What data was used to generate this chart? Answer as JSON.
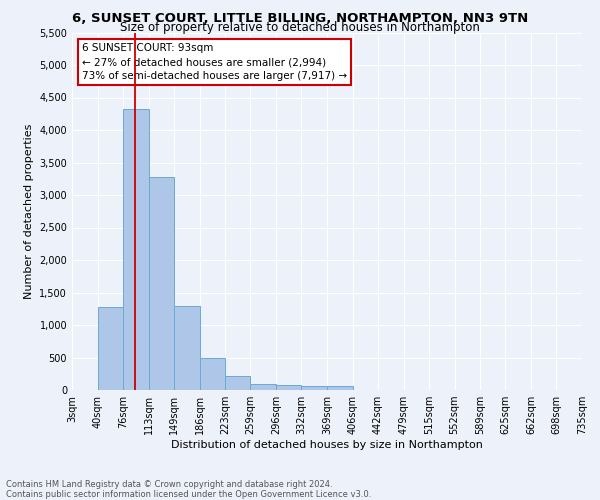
{
  "title1": "6, SUNSET COURT, LITTLE BILLING, NORTHAMPTON, NN3 9TN",
  "title2": "Size of property relative to detached houses in Northampton",
  "xlabel": "Distribution of detached houses by size in Northampton",
  "ylabel": "Number of detached properties",
  "footer": "Contains HM Land Registry data © Crown copyright and database right 2024.\nContains public sector information licensed under the Open Government Licence v3.0.",
  "annotation_title": "6 SUNSET COURT: 93sqm",
  "annotation_line1": "← 27% of detached houses are smaller (2,994)",
  "annotation_line2": "73% of semi-detached houses are larger (7,917) →",
  "bar_edges": [
    3,
    40,
    76,
    113,
    149,
    186,
    223,
    259,
    296,
    332,
    369,
    406,
    442,
    479,
    515,
    552,
    589,
    625,
    662,
    698,
    735
  ],
  "bar_heights": [
    0,
    1270,
    4330,
    3270,
    1290,
    490,
    220,
    100,
    80,
    60,
    60,
    0,
    0,
    0,
    0,
    0,
    0,
    0,
    0,
    0
  ],
  "bar_color": "#aec6e8",
  "bar_edgecolor": "#6aaad4",
  "red_line_x": 93,
  "ylim": [
    0,
    5500
  ],
  "yticks": [
    0,
    500,
    1000,
    1500,
    2000,
    2500,
    3000,
    3500,
    4000,
    4500,
    5000,
    5500
  ],
  "background_color": "#edf1fa",
  "grid_color": "#ffffff",
  "annotation_box_color": "#ffffff",
  "annotation_box_edgecolor": "#cc0000",
  "title1_fontsize": 9.5,
  "title2_fontsize": 8.5,
  "ylabel_fontsize": 8,
  "xlabel_fontsize": 8,
  "tick_fontsize": 7,
  "footer_fontsize": 6,
  "ann_fontsize": 7.5,
  "tick_labels": [
    "3sqm",
    "40sqm",
    "76sqm",
    "113sqm",
    "149sqm",
    "186sqm",
    "223sqm",
    "259sqm",
    "296sqm",
    "332sqm",
    "369sqm",
    "406sqm",
    "442sqm",
    "479sqm",
    "515sqm",
    "552sqm",
    "589sqm",
    "625sqm",
    "662sqm",
    "698sqm",
    "735sqm"
  ]
}
